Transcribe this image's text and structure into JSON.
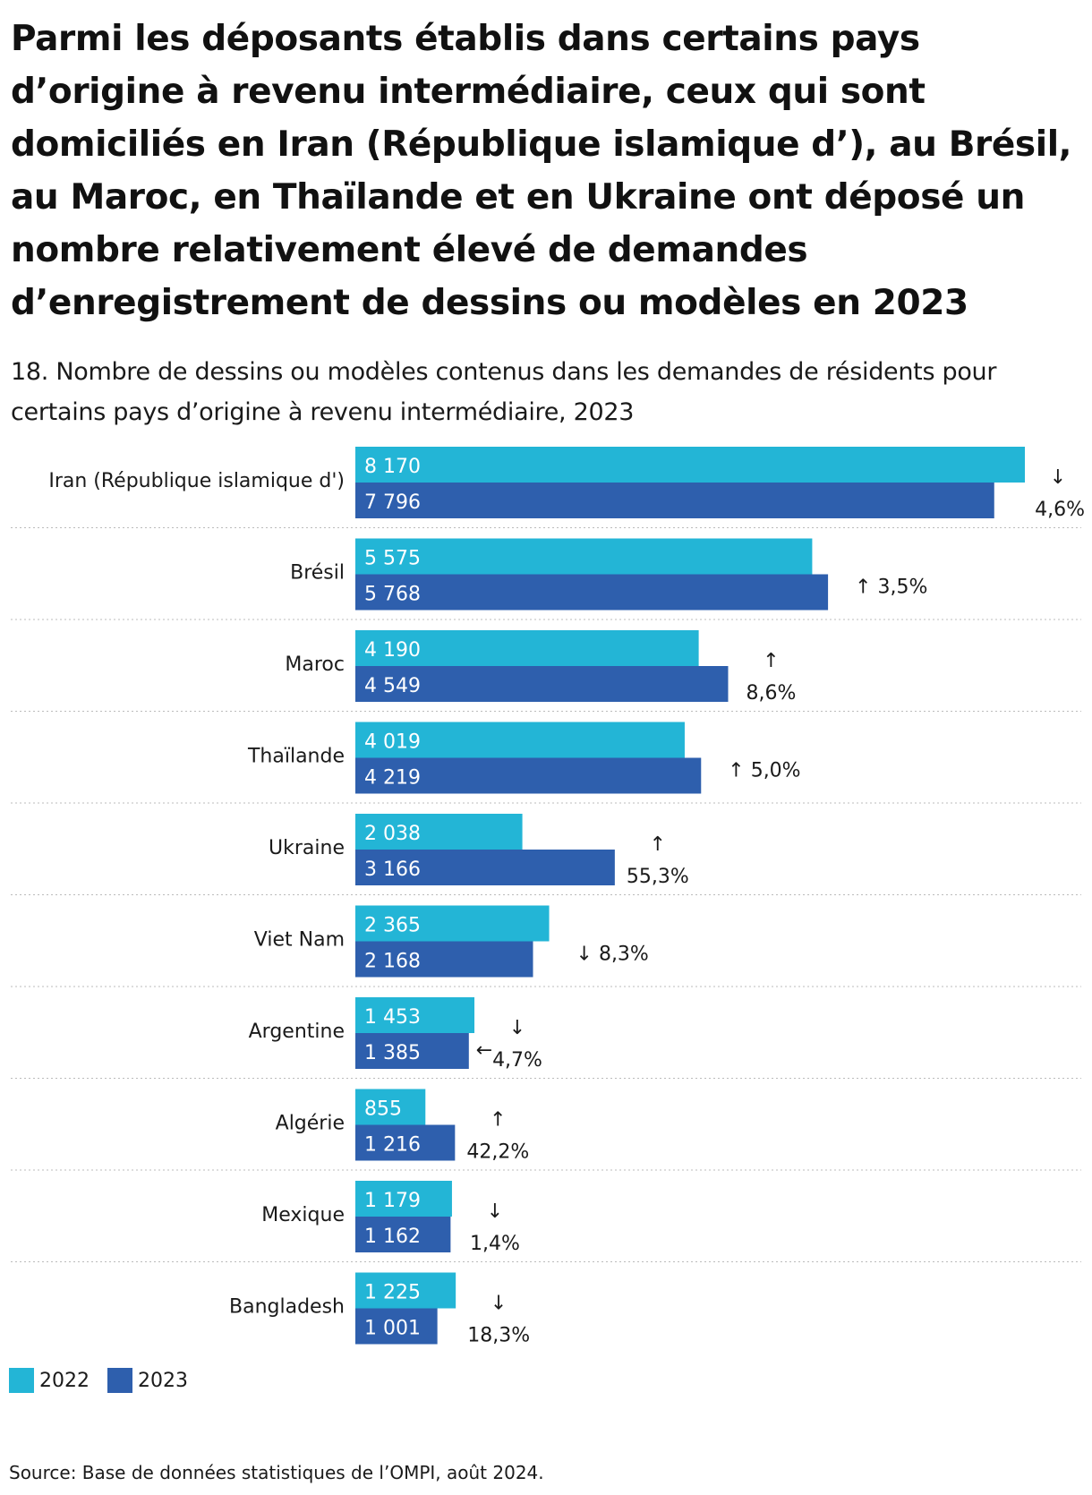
{
  "title": "Parmi les déposants établis dans certains pays d’origine à revenu intermédiaire, ceux qui sont domiciliés en Iran (République islamique d’), au Brésil, au Maroc, en Thaïlande et en Ukraine ont déposé un nombre relativement élevé de demandes d’enregistrement de dessins ou modèles en 2023",
  "subtitle": "18. Nombre de dessins ou modèles contenus dans les demandes de résidents pour certains pays d’origine à revenu intermédiaire, 2023",
  "source": "Source: Base de données statistiques de l’OMPI, août 2024.",
  "colors": {
    "series_2022": "#23b5d6",
    "series_2023": "#2e5fad",
    "gridline": "#bbbbbb"
  },
  "chart_data": {
    "type": "bar",
    "orientation": "horizontal",
    "categories": [
      "Iran (République islamique d')",
      "Brésil",
      "Maroc",
      "Thaïlande",
      "Ukraine",
      "Viet Nam",
      "Argentine",
      "Algérie",
      "Mexique",
      "Bangladesh"
    ],
    "series": [
      {
        "name": "2022",
        "values": [
          8170,
          5575,
          4190,
          4019,
          2038,
          2365,
          1453,
          855,
          1179,
          1225
        ],
        "labels": [
          "8 170",
          "5 575",
          "4 190",
          "4 019",
          "2 038",
          "2 365",
          "1 453",
          "855",
          "1 179",
          "1 225"
        ]
      },
      {
        "name": "2023",
        "values": [
          7796,
          5768,
          4549,
          4219,
          3166,
          2168,
          1385,
          1216,
          1162,
          1001
        ],
        "labels": [
          "7 796",
          "5 768",
          "4 549",
          "4 219",
          "3 166",
          "2 168",
          "1 385",
          "1 216",
          "1 162",
          "1 001"
        ]
      }
    ],
    "changes": [
      {
        "arrow": "↓",
        "text": "4,6%",
        "stacked": true
      },
      {
        "arrow": "↑",
        "text": "3,5%",
        "stacked": false
      },
      {
        "arrow": "↑",
        "text": "8,6%",
        "stacked": true
      },
      {
        "arrow": "↑",
        "text": "5,0%",
        "stacked": false
      },
      {
        "arrow": "↑",
        "text": "55,3%",
        "stacked": true
      },
      {
        "arrow": "↓",
        "text": "8,3%",
        "stacked": false
      },
      {
        "arrow": "↓",
        "text": "4,7%",
        "stacked": true
      },
      {
        "arrow": "↑",
        "text": "42,2%",
        "stacked": true
      },
      {
        "arrow": "↓",
        "text": "1,4%",
        "stacked": true
      },
      {
        "arrow": "↓",
        "text": "18,3%",
        "stacked": true
      }
    ],
    "annotation_arrow": "←",
    "xlim": [
      0,
      8170
    ],
    "legend": [
      "2022",
      "2023"
    ],
    "legend_position": "bottom-left"
  }
}
